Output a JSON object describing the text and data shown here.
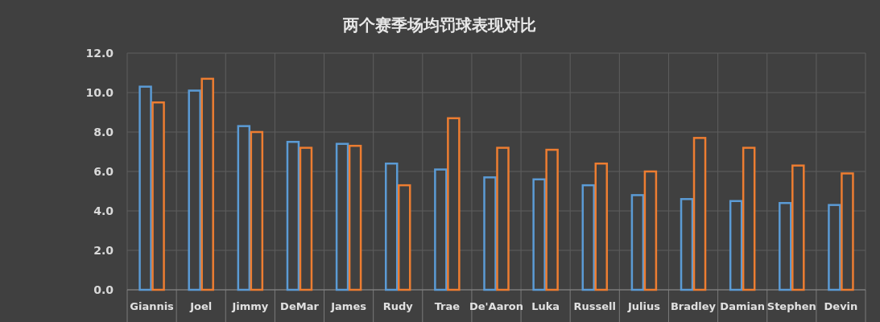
{
  "chart_data": {
    "type": "bar",
    "title": "两个赛季场均罚球表现对比",
    "categories": [
      "Giannis",
      "Joel",
      "Jimmy",
      "DeMar",
      "James",
      "Rudy",
      "Trae",
      "De'Aaron",
      "Luka",
      "Russell",
      "Julius",
      "Bradley",
      "Damian",
      "Stephen",
      "Devin"
    ],
    "series": [
      {
        "color": "#5b9bd5",
        "values": [
          10.3,
          10.1,
          8.3,
          7.5,
          7.4,
          6.4,
          6.1,
          5.7,
          5.6,
          5.3,
          4.8,
          4.6,
          4.5,
          4.4,
          4.3
        ]
      },
      {
        "color": "#ed7d31",
        "values": [
          9.5,
          10.7,
          8.0,
          7.2,
          7.3,
          5.3,
          8.7,
          7.2,
          7.1,
          6.4,
          6.0,
          7.7,
          7.2,
          6.3,
          5.9
        ]
      }
    ],
    "ylim": [
      0,
      12
    ],
    "yticks": [
      {
        "value": 0,
        "label": "0.0"
      },
      {
        "value": 2,
        "label": "2.0"
      },
      {
        "value": 4,
        "label": "4.0"
      },
      {
        "value": 6,
        "label": "6.0"
      },
      {
        "value": 8,
        "label": "8.0"
      },
      {
        "value": 10,
        "label": "10.0"
      },
      {
        "value": 12,
        "label": "12.0"
      }
    ],
    "grid": true
  }
}
